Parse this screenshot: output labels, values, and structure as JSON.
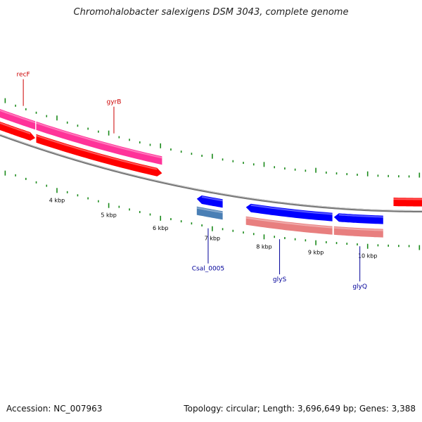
{
  "title": "Chromohalobacter salexigens DSM 3043, complete genome",
  "footer": {
    "accession": "Accession: NC_007963",
    "topology": "Topology: circular; Length: 3,696,649 bp; Genes: 3,388"
  },
  "colors": {
    "backbone": "#777777",
    "tick": "#1a8a1a",
    "forward_cds": "#ff0000",
    "forward_gene": "#ff3399",
    "reverse_cds": "#0000ff",
    "reverse_gene": "#4a7fb5",
    "reverse_rna": "#e87f7f",
    "forward_label": "#cc0000",
    "reverse_label": "#000099"
  },
  "map": {
    "axis_labels": [
      "4 kbp",
      "5 kbp",
      "6 kbp",
      "7 kbp",
      "8 kbp",
      "9 kbp",
      "10 kbp"
    ],
    "axis_label_kbp": [
      4,
      5,
      6,
      7,
      8,
      9,
      10
    ],
    "kbp_range": [
      2.9,
      11.05
    ],
    "forward_features": [
      {
        "name": "recF-gene",
        "start_kbp": 2.9,
        "end_kbp": 3.58,
        "kind": "gene",
        "arrow": false
      },
      {
        "name": "gyrB-gene",
        "start_kbp": 3.6,
        "end_kbp": 6.03,
        "kind": "gene",
        "arrow": false
      },
      {
        "name": "recF-cds",
        "start_kbp": 2.9,
        "end_kbp": 3.58,
        "kind": "cds",
        "arrow": true
      },
      {
        "name": "gyrB-cds",
        "start_kbp": 3.6,
        "end_kbp": 6.03,
        "kind": "cds",
        "arrow": true
      },
      {
        "name": "next-cds",
        "start_kbp": 10.5,
        "end_kbp": 11.05,
        "kind": "cds",
        "arrow": false
      }
    ],
    "reverse_features": [
      {
        "name": "Csal_0005-cds",
        "start_kbp": 6.7,
        "end_kbp": 7.2,
        "kind": "cds",
        "arrow": true
      },
      {
        "name": "Csal_0005-gene",
        "start_kbp": 6.7,
        "end_kbp": 7.2,
        "kind": "gene",
        "arrow": false
      },
      {
        "name": "glyS-cds",
        "start_kbp": 7.65,
        "end_kbp": 9.32,
        "kind": "cds",
        "arrow": true
      },
      {
        "name": "glyQ-cds",
        "start_kbp": 9.35,
        "end_kbp": 10.3,
        "kind": "cds",
        "arrow": true
      },
      {
        "name": "glyS-rna",
        "start_kbp": 7.65,
        "end_kbp": 9.32,
        "kind": "rna",
        "arrow": false
      },
      {
        "name": "glyQ-rna",
        "start_kbp": 9.35,
        "end_kbp": 10.3,
        "kind": "rna",
        "arrow": false
      }
    ],
    "gene_labels": [
      {
        "text": "recF",
        "strand": "forward",
        "at_kbp": 3.35
      },
      {
        "text": "gyrB",
        "strand": "forward",
        "at_kbp": 5.1
      },
      {
        "text": "Csal_0005",
        "strand": "reverse",
        "at_kbp": 6.92
      },
      {
        "text": "glyS",
        "strand": "reverse",
        "at_kbp": 8.3
      },
      {
        "text": "glyQ",
        "strand": "reverse",
        "at_kbp": 9.85
      }
    ]
  }
}
